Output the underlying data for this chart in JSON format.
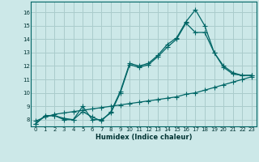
{
  "bg_color": "#cce8e8",
  "grid_color": "#aacccc",
  "line_color": "#006666",
  "xlabel": "Humidex (Indice chaleur)",
  "xlim": [
    -0.5,
    23.5
  ],
  "ylim": [
    7.5,
    16.8
  ],
  "yticks": [
    8,
    9,
    10,
    11,
    12,
    13,
    14,
    15,
    16
  ],
  "xticks": [
    0,
    1,
    2,
    3,
    4,
    5,
    6,
    7,
    8,
    9,
    10,
    11,
    12,
    13,
    14,
    15,
    16,
    17,
    18,
    19,
    20,
    21,
    22,
    23
  ],
  "line1_x": [
    0,
    1,
    2,
    3,
    4,
    5,
    6,
    7,
    8,
    9,
    10,
    11,
    12,
    13,
    14,
    15,
    16,
    17,
    18,
    19,
    20,
    21,
    22,
    23
  ],
  "line1_y": [
    7.7,
    8.3,
    8.3,
    8.1,
    8.0,
    8.6,
    8.2,
    7.9,
    8.6,
    10.1,
    12.2,
    12.0,
    12.2,
    12.8,
    13.6,
    14.1,
    15.3,
    16.2,
    15.0,
    13.0,
    12.0,
    11.5,
    11.3,
    11.3
  ],
  "line2_x": [
    0,
    1,
    2,
    3,
    4,
    5,
    6,
    7,
    8,
    9,
    10,
    11,
    12,
    13,
    14,
    15,
    16,
    17,
    18,
    19,
    20,
    21,
    22,
    23
  ],
  "line2_y": [
    7.7,
    8.3,
    8.3,
    8.0,
    8.0,
    9.0,
    8.0,
    8.0,
    8.5,
    10.0,
    12.1,
    11.9,
    12.1,
    12.7,
    13.4,
    14.0,
    15.2,
    14.5,
    14.5,
    13.0,
    11.9,
    11.4,
    11.3,
    11.3
  ],
  "line3_x": [
    0,
    1,
    2,
    3,
    4,
    5,
    6,
    7,
    8,
    9,
    10,
    11,
    12,
    13,
    14,
    15,
    16,
    17,
    18,
    19,
    20,
    21,
    22,
    23
  ],
  "line3_y": [
    7.9,
    8.2,
    8.4,
    8.5,
    8.6,
    8.7,
    8.8,
    8.9,
    9.0,
    9.1,
    9.2,
    9.3,
    9.4,
    9.5,
    9.6,
    9.7,
    9.9,
    10.0,
    10.2,
    10.4,
    10.6,
    10.8,
    11.0,
    11.2
  ]
}
